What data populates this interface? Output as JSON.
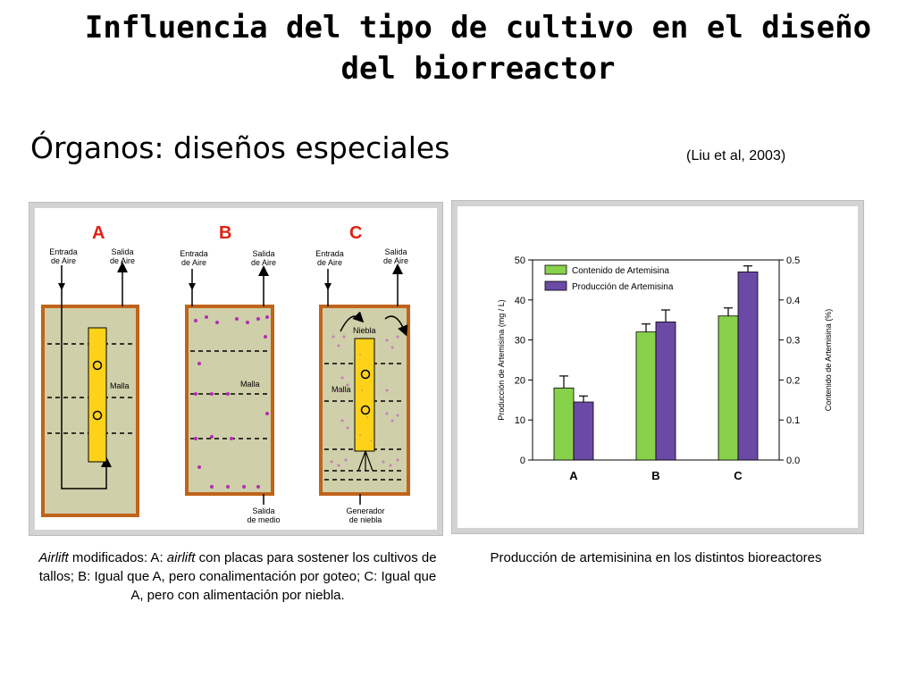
{
  "slide": {
    "title": "Influencia del tipo de cultivo en el diseño del biorreactor",
    "subtitle": "Órganos: diseños especiales",
    "citation": "(Liu et al, 2003)"
  },
  "diagram": {
    "reactors": [
      {
        "letter": "A",
        "inlet": "Entrada\nde Aire",
        "outlet": "Salida\nde Aire",
        "mesh": "Malla"
      },
      {
        "letter": "B",
        "inlet": "Entrada\nde Aire",
        "outlet": "Salida\nde Aire",
        "mesh": "Malla",
        "bottom": "Salida\nde medio"
      },
      {
        "letter": "C",
        "inlet": "Entrada\nde Aire",
        "outlet": "Salida\nde Aire",
        "mesh": "Malla",
        "mist": "Niebla",
        "bottom": "Generador\nde niebla"
      }
    ],
    "colors": {
      "vessel": "#c0641a",
      "medium": "#cfcfaa",
      "support": "#ffd21a",
      "droplet": "#b02fb0"
    }
  },
  "chart_data": {
    "type": "bar",
    "categories": [
      "A",
      "B",
      "C"
    ],
    "series": [
      {
        "name": "Contenido de Artemisina",
        "color": "#88d14b",
        "axis": "right",
        "values": [
          0.18,
          0.32,
          0.36
        ],
        "errors": [
          0.03,
          0.02,
          0.02
        ]
      },
      {
        "name": "Producción de Artemisina",
        "color": "#6b4aa6",
        "axis": "left",
        "values": [
          14.5,
          34.5,
          47
        ],
        "errors": [
          1.5,
          3,
          1.5
        ]
      }
    ],
    "ylabel": "Producción de Artemisina (mg / L)",
    "ylabel_right": "Contenido de Artemisina (%)",
    "ylim": [
      0,
      50
    ],
    "ylim_right": [
      0,
      0.5
    ],
    "yticks": [
      "0",
      "10",
      "20",
      "30",
      "40",
      "50"
    ],
    "yticks_right": [
      "0.0",
      "0.1",
      "0.2",
      "0.3",
      "0.4",
      "0.5"
    ],
    "legend_position": "top-left"
  },
  "captions": {
    "left_italic_1": "Airlift",
    "left_1": " modificados: A: ",
    "left_italic_2": "airlift",
    "left_2": " con placas  para sostener los cultivos de tallos; B: Igual que A, pero conalimentación por goteo; C: Igual que A, pero con alimentación por niebla.",
    "right": "Producción de artemisinina en los distintos bioreactores"
  }
}
